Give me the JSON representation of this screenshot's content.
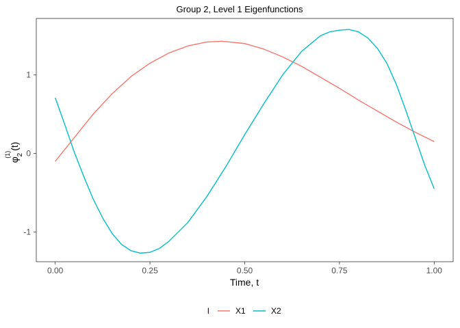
{
  "chart_data": {
    "type": "line",
    "title": "Group 2, Level 1 Eigenfunctions",
    "xlabel": "Time, t",
    "ylabel_base": "φ",
    "ylabel_sub": "2",
    "ylabel_sup": "(1)",
    "ylabel_tail": "(t)",
    "xlim": [
      -0.05,
      1.05
    ],
    "ylim": [
      -1.38,
      1.72
    ],
    "x_ticks": [
      0.0,
      0.25,
      0.5,
      0.75,
      1.0
    ],
    "x_tick_labels": [
      "0.00",
      "0.25",
      "0.50",
      "0.75",
      "1.00"
    ],
    "y_ticks": [
      -1,
      0,
      1
    ],
    "y_tick_labels": [
      "-1",
      "0",
      "1"
    ],
    "grid": false,
    "legend_position": "bottom",
    "legend_title": "l",
    "series": [
      {
        "name": "X1",
        "color": "#F8766D",
        "x": [
          0.0,
          0.05,
          0.1,
          0.15,
          0.2,
          0.25,
          0.3,
          0.35,
          0.4,
          0.44,
          0.5,
          0.55,
          0.6,
          0.65,
          0.7,
          0.75,
          0.8,
          0.85,
          0.9,
          0.95,
          1.0
        ],
        "y": [
          -0.1,
          0.2,
          0.5,
          0.76,
          0.98,
          1.15,
          1.28,
          1.37,
          1.42,
          1.43,
          1.4,
          1.33,
          1.23,
          1.11,
          0.97,
          0.83,
          0.68,
          0.54,
          0.4,
          0.27,
          0.15
        ]
      },
      {
        "name": "X2",
        "color": "#00BFC4",
        "x": [
          0.0,
          0.025,
          0.05,
          0.075,
          0.1,
          0.125,
          0.15,
          0.175,
          0.2,
          0.225,
          0.25,
          0.275,
          0.3,
          0.35,
          0.4,
          0.45,
          0.5,
          0.55,
          0.6,
          0.65,
          0.7,
          0.725,
          0.75,
          0.775,
          0.8,
          0.825,
          0.85,
          0.875,
          0.9,
          0.925,
          0.95,
          0.975,
          1.0
        ],
        "y": [
          0.71,
          0.37,
          0.02,
          -0.29,
          -0.58,
          -0.82,
          -1.02,
          -1.16,
          -1.24,
          -1.27,
          -1.26,
          -1.21,
          -1.12,
          -0.88,
          -0.55,
          -0.17,
          0.24,
          0.63,
          1.0,
          1.3,
          1.5,
          1.55,
          1.57,
          1.58,
          1.55,
          1.47,
          1.34,
          1.15,
          0.88,
          0.55,
          0.2,
          -0.15,
          -0.45
        ]
      }
    ]
  }
}
